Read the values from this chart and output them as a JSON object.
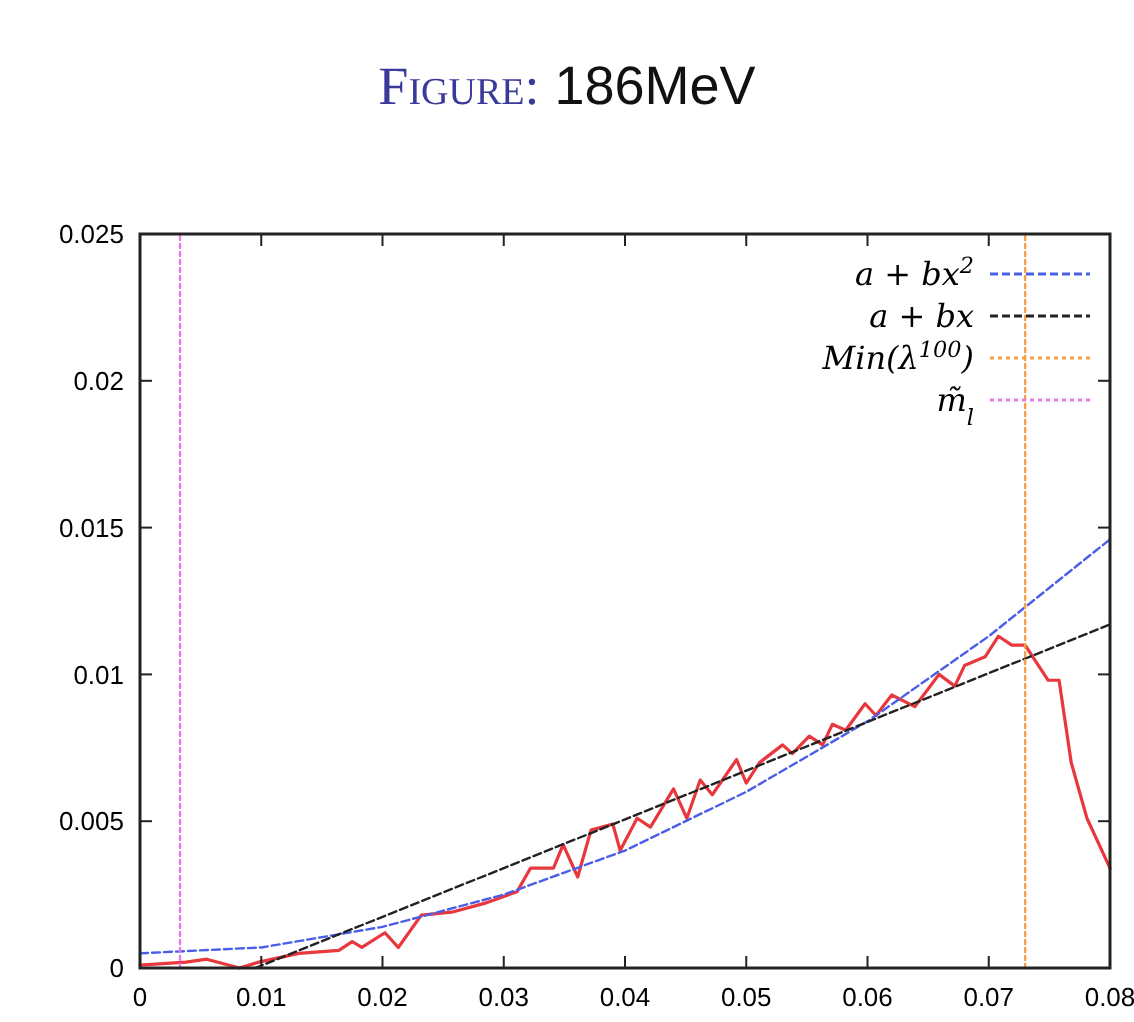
{
  "chart_data": {
    "type": "line",
    "title": "Figure: 186MeV",
    "xlim": [
      0,
      0.08
    ],
    "ylim": [
      0,
      0.025
    ],
    "xticks": [
      0,
      0.01,
      0.02,
      0.03,
      0.04,
      0.05,
      0.06,
      0.07,
      0.08
    ],
    "yticks": [
      0,
      0.005,
      0.01,
      0.015,
      0.02,
      0.025
    ],
    "grid": false,
    "legend": "top right",
    "series": [
      {
        "color": "#e8383d",
        "line_style": "solid",
        "x": [
          0,
          0.0038,
          0.0055,
          0.0082,
          0.0098,
          0.0131,
          0.0164,
          0.0175,
          0.0183,
          0.0202,
          0.0213,
          0.0232,
          0.0257,
          0.0284,
          0.0311,
          0.0322,
          0.0341,
          0.0349,
          0.0361,
          0.0372,
          0.039,
          0.0396,
          0.041,
          0.0421,
          0.044,
          0.0451,
          0.0462,
          0.0472,
          0.0492,
          0.05,
          0.0511,
          0.053,
          0.0538,
          0.0552,
          0.0563,
          0.0571,
          0.0582,
          0.0598,
          0.0607,
          0.062,
          0.0639,
          0.0659,
          0.0672,
          0.068,
          0.0697,
          0.0708,
          0.0719,
          0.073,
          0.0749,
          0.0758,
          0.0768,
          0.0781,
          0.08
        ],
        "values": [
          0.0001,
          0.0002,
          0.0003,
          0,
          0.0002,
          0.0005,
          0.0006,
          0.0009,
          0.0007,
          0.0012,
          0.0007,
          0.0018,
          0.0019,
          0.0022,
          0.0026,
          0.0034,
          0.0034,
          0.0042,
          0.0031,
          0.0047,
          0.0049,
          0.004,
          0.0051,
          0.0048,
          0.0061,
          0.0051,
          0.0064,
          0.0059,
          0.0071,
          0.0063,
          0.007,
          0.0076,
          0.0073,
          0.0079,
          0.0076,
          0.0083,
          0.0081,
          0.009,
          0.0086,
          0.0093,
          0.0089,
          0.01,
          0.0096,
          0.0103,
          0.0106,
          0.0113,
          0.011,
          0.011,
          0.0098,
          0.0098,
          0.007,
          0.0051,
          0.0034
        ]
      },
      {
        "name": "a + bx$^{2}$",
        "color": "#4a5ee8",
        "line_style": "dashed",
        "x": [
          0,
          0.01,
          0.02,
          0.03,
          0.04,
          0.05,
          0.06,
          0.07,
          0.08
        ],
        "values": [
          0.0005,
          0.0007,
          0.0014,
          0.0025,
          0.004,
          0.006,
          0.0084,
          0.0113,
          0.0146
        ]
      },
      {
        "name": "a + bx",
        "color": "#222222",
        "line_style": "dashed",
        "x": [
          0.0095,
          0.08
        ],
        "values": [
          0,
          0.0117
        ]
      },
      {
        "name": "Min(λ$^{100}$)",
        "color": "#f5a142",
        "line_style": "dotted",
        "x": [
          0.073,
          0.073
        ],
        "values": [
          0,
          0.025
        ]
      },
      {
        "name": "m̃$_{l}$",
        "color": "#e87ae8",
        "line_style": "dotted",
        "x": [
          0.0033,
          0.0033
        ],
        "values": [
          0,
          0.025
        ]
      }
    ]
  }
}
